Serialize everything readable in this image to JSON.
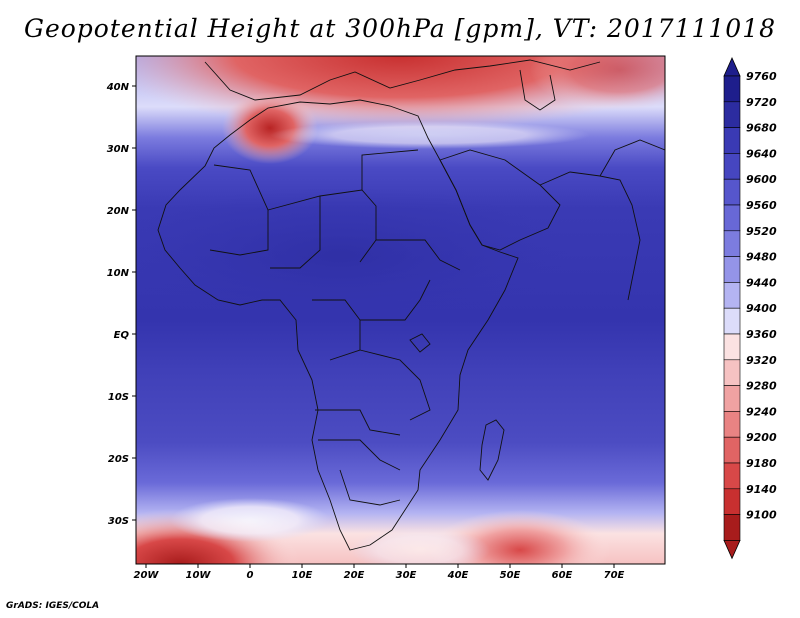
{
  "title": "Geopotential Height at 300hPa [gpm], VT: 2017111018",
  "footer": "GrADS: IGES/COLA",
  "map": {
    "lon_ticks": [
      "20W",
      "10W",
      "0",
      "10E",
      "20E",
      "30E",
      "40E",
      "50E",
      "60E",
      "70E"
    ],
    "lat_ticks": [
      "40N",
      "30N",
      "20N",
      "10N",
      "EQ",
      "10S",
      "20S",
      "30S"
    ]
  },
  "colorbar": {
    "levels": [
      "9760",
      "9720",
      "9680",
      "9640",
      "9600",
      "9560",
      "9520",
      "9480",
      "9440",
      "9400",
      "9360",
      "9320",
      "9280",
      "9240",
      "9200",
      "9180",
      "9140",
      "9100"
    ],
    "colors": [
      "#1e1e8c",
      "#2c2ca0",
      "#3a3ab4",
      "#4646c0",
      "#5656cc",
      "#6868d6",
      "#7c7cdf",
      "#9494e8",
      "#b4b4f2",
      "#dcdcfa",
      "#fbe2e2",
      "#f6c2c2",
      "#f0a2a2",
      "#e98383",
      "#e06464",
      "#d84848",
      "#c83030",
      "#a81c1c"
    ]
  }
}
